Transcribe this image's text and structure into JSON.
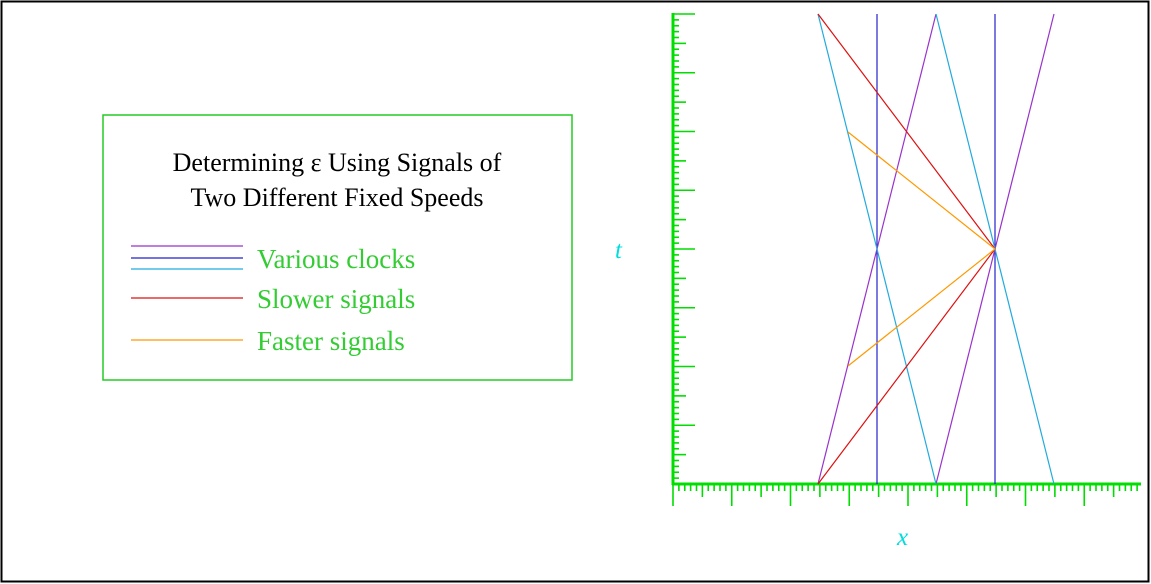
{
  "diagram": {
    "title_line1": "Determining ε Using Signals of",
    "title_line2": "Two Different Fixed Speeds",
    "x_label": "x",
    "t_label": "t",
    "legend": [
      {
        "label": "Various clocks",
        "colors": [
          "#9932CC",
          "#2222CC",
          "#22AADD"
        ]
      },
      {
        "label": "Slower signals",
        "colors": [
          "#DD1111"
        ]
      },
      {
        "label": "Faster signals",
        "colors": [
          "#FF9900"
        ]
      }
    ]
  },
  "colors": {
    "axis": "#00DD00",
    "legend_border": "#22CC22",
    "legend_text": "#33CC33",
    "label": "#00DDDD",
    "frame": "#000000"
  }
}
